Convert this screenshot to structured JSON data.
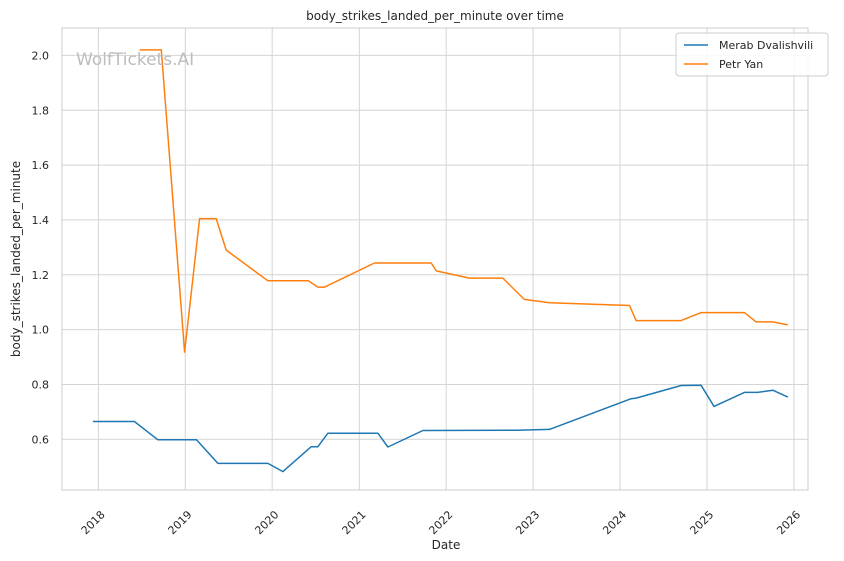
{
  "chart_data": {
    "type": "line",
    "title": "body_strikes_landed_per_minute over time",
    "xlabel": "Date",
    "ylabel": "body_strikes_landed_per_minute",
    "watermark": "WolfTickets.AI",
    "x_ticks": [
      "2018",
      "2019",
      "2020",
      "2021",
      "2022",
      "2023",
      "2024",
      "2025",
      "2026"
    ],
    "y_ticks": [
      "0.6",
      "0.8",
      "1.0",
      "1.2",
      "1.4",
      "1.6",
      "1.8",
      "2.0"
    ],
    "xlim": [
      "2017-08-01",
      "2026-03-01"
    ],
    "ylim": [
      0.415,
      2.1
    ],
    "grid": true,
    "legend_position": "top-right",
    "series": [
      {
        "name": "Merab Dvalishvili",
        "color": "#1f77b4",
        "points": [
          [
            "2017-12-09",
            0.665
          ],
          [
            "2018-06-01",
            0.665
          ],
          [
            "2018-09-08",
            0.598
          ],
          [
            "2018-12-29",
            0.598
          ],
          [
            "2019-02-17",
            0.598
          ],
          [
            "2019-05-18",
            0.512
          ],
          [
            "2019-12-14",
            0.512
          ],
          [
            "2020-02-15",
            0.482
          ],
          [
            "2020-06-13",
            0.573
          ],
          [
            "2020-07-11",
            0.573
          ],
          [
            "2020-08-22",
            0.622
          ],
          [
            "2021-03-20",
            0.622
          ],
          [
            "2021-05-01",
            0.572
          ],
          [
            "2021-09-25",
            0.632
          ],
          [
            "2022-10-22",
            0.633
          ],
          [
            "2023-03-11",
            0.636
          ],
          [
            "2024-02-17",
            0.748
          ],
          [
            "2024-03-09",
            0.75
          ],
          [
            "2024-09-14",
            0.796
          ],
          [
            "2024-12-07",
            0.797
          ],
          [
            "2025-01-30",
            0.72
          ],
          [
            "2025-06-07",
            0.771
          ],
          [
            "2025-08-01",
            0.771
          ],
          [
            "2025-10-04",
            0.779
          ],
          [
            "2025-12-06",
            0.754
          ]
        ]
      },
      {
        "name": "Petr Yan",
        "color": "#ff7f0e",
        "points": [
          [
            "2018-06-23",
            2.02
          ],
          [
            "2018-09-22",
            2.02
          ],
          [
            "2018-12-29",
            0.918
          ],
          [
            "2019-03-02",
            1.405
          ],
          [
            "2019-05-11",
            1.405
          ],
          [
            "2019-06-22",
            1.29
          ],
          [
            "2019-12-14",
            1.178
          ],
          [
            "2020-06-01",
            1.178
          ],
          [
            "2020-07-11",
            1.155
          ],
          [
            "2020-08-08",
            1.155
          ],
          [
            "2021-03-06",
            1.243
          ],
          [
            "2021-10-30",
            1.243
          ],
          [
            "2021-11-20",
            1.214
          ],
          [
            "2022-04-09",
            1.188
          ],
          [
            "2022-08-27",
            1.188
          ],
          [
            "2022-11-25",
            1.11
          ],
          [
            "2023-03-11",
            1.098
          ],
          [
            "2024-02-10",
            1.088
          ],
          [
            "2024-03-09",
            1.033
          ],
          [
            "2024-09-14",
            1.033
          ],
          [
            "2024-12-07",
            1.062
          ],
          [
            "2025-06-07",
            1.062
          ],
          [
            "2025-07-26",
            1.028
          ],
          [
            "2025-10-04",
            1.028
          ],
          [
            "2025-12-06",
            1.017
          ]
        ]
      }
    ]
  }
}
